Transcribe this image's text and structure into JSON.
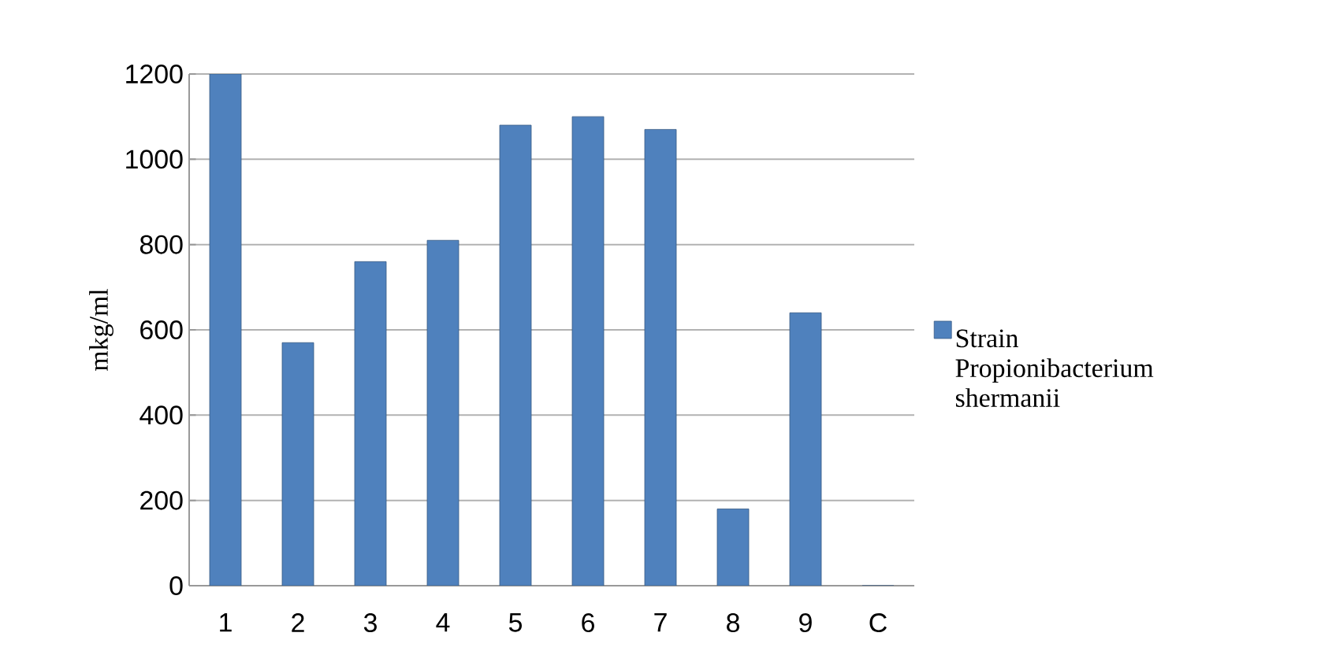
{
  "chart_data": {
    "type": "bar",
    "ylabel": "mkg/ml",
    "categories": [
      "1",
      "2",
      "3",
      "4",
      "5",
      "6",
      "7",
      "8",
      "9",
      "C"
    ],
    "series": [
      {
        "name": "Strain Propionibacterium shermanii",
        "color": "#4f81bd",
        "values": [
          1200,
          570,
          760,
          810,
          1080,
          1100,
          1070,
          180,
          640,
          0
        ]
      }
    ],
    "ylim": [
      0,
      1200
    ],
    "yticks": [
      0,
      200,
      400,
      600,
      800,
      1000,
      1200
    ],
    "grid": "y",
    "legend": "right"
  }
}
